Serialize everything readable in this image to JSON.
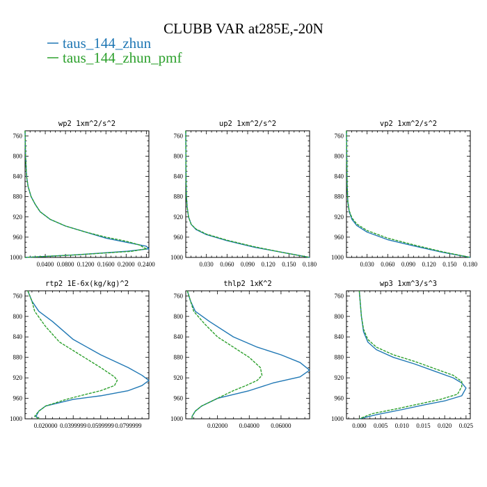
{
  "figure": {
    "title": "CLUBB VAR at285E,-20N",
    "legend": [
      {
        "label": "taus_144_zhun",
        "color": "#1f77b4"
      },
      {
        "label": "taus_144_zhun_pmf",
        "color": "#2ca02c"
      }
    ]
  },
  "chart_data": [
    {
      "type": "line",
      "title": "wp2 1xm^2/s^2",
      "xlim": [
        0.0,
        0.245
      ],
      "ylim": [
        1000,
        750
      ],
      "xticks": [
        0.04,
        0.08,
        0.12,
        0.16,
        0.2,
        0.24
      ],
      "xtick_labels": [
        "0.0400",
        "0.0800",
        "0.1200",
        "0.1600",
        "0.2000",
        "0.2400"
      ],
      "yticks": [
        760,
        800,
        840,
        880,
        920,
        960,
        1000
      ],
      "series": [
        {
          "color": "#1f77b4",
          "dashed": false,
          "x": [
            0.0,
            0.001,
            0.003,
            0.006,
            0.012,
            0.02,
            0.03,
            0.05,
            0.08,
            0.12,
            0.16,
            0.2,
            0.24,
            0.245,
            0.2,
            0.1,
            0.0
          ],
          "y": [
            750,
            800,
            840,
            860,
            880,
            895,
            910,
            925,
            938,
            950,
            962,
            970,
            978,
            983,
            988,
            995,
            1000
          ]
        },
        {
          "color": "#2ca02c",
          "dashed": true,
          "x": [
            0.0,
            0.001,
            0.003,
            0.006,
            0.012,
            0.02,
            0.03,
            0.05,
            0.08,
            0.12,
            0.16,
            0.2,
            0.225,
            0.24,
            0.21,
            0.1,
            0.0
          ],
          "y": [
            750,
            800,
            840,
            860,
            880,
            895,
            910,
            925,
            938,
            950,
            960,
            968,
            975,
            983,
            988,
            995,
            1000
          ]
        }
      ]
    },
    {
      "type": "line",
      "title": "up2 1xm^2/s^2",
      "xlim": [
        0.0,
        0.18
      ],
      "ylim": [
        1000,
        750
      ],
      "xticks": [
        0.03,
        0.06,
        0.09,
        0.12,
        0.15,
        0.18
      ],
      "xtick_labels": [
        "0.030",
        "0.060",
        "0.090",
        "0.120",
        "0.150",
        "0.180"
      ],
      "yticks": [
        760,
        800,
        840,
        880,
        920,
        960,
        1000
      ],
      "series": [
        {
          "color": "#1f77b4",
          "dashed": false,
          "x": [
            0.0,
            0.0005,
            0.001,
            0.002,
            0.004,
            0.008,
            0.015,
            0.03,
            0.06,
            0.1,
            0.14,
            0.18
          ],
          "y": [
            750,
            850,
            880,
            900,
            920,
            935,
            945,
            955,
            967,
            980,
            990,
            1000
          ]
        },
        {
          "color": "#2ca02c",
          "dashed": true,
          "x": [
            0.0,
            0.0005,
            0.001,
            0.002,
            0.004,
            0.008,
            0.015,
            0.03,
            0.06,
            0.1,
            0.14,
            0.18
          ],
          "y": [
            750,
            850,
            880,
            900,
            920,
            935,
            944,
            954,
            966,
            979,
            990,
            1000
          ]
        }
      ]
    },
    {
      "type": "line",
      "title": "vp2 1xm^2/s^2",
      "xlim": [
        0.0,
        0.18
      ],
      "ylim": [
        1000,
        750
      ],
      "xticks": [
        0.03,
        0.06,
        0.09,
        0.12,
        0.15,
        0.18
      ],
      "xtick_labels": [
        "0.030",
        "0.060",
        "0.090",
        "0.120",
        "0.150",
        "0.180"
      ],
      "yticks": [
        760,
        800,
        840,
        880,
        920,
        960,
        1000
      ],
      "series": [
        {
          "color": "#1f77b4",
          "dashed": false,
          "x": [
            0.0,
            0.001,
            0.002,
            0.004,
            0.008,
            0.015,
            0.03,
            0.06,
            0.1,
            0.14,
            0.18
          ],
          "y": [
            750,
            860,
            890,
            910,
            925,
            937,
            950,
            965,
            978,
            990,
            1000
          ]
        },
        {
          "color": "#2ca02c",
          "dashed": true,
          "x": [
            0.0,
            0.001,
            0.002,
            0.004,
            0.008,
            0.015,
            0.03,
            0.06,
            0.1,
            0.14,
            0.18
          ],
          "y": [
            750,
            860,
            890,
            908,
            922,
            934,
            947,
            962,
            976,
            989,
            1000
          ]
        }
      ]
    },
    {
      "type": "line",
      "title": "rtp2 1E-6x(kg/kg)^2",
      "xlim": [
        0.005,
        0.095
      ],
      "ylim": [
        1000,
        750
      ],
      "xticks": [
        0.02,
        0.04,
        0.06,
        0.08
      ],
      "xtick_labels": [
        "0.020000",
        "0.0399999",
        "0.0599999",
        "0.0799999"
      ],
      "yticks": [
        760,
        800,
        840,
        880,
        920,
        960,
        1000
      ],
      "series": [
        {
          "color": "#1f77b4",
          "dashed": false,
          "x": [
            0.007,
            0.01,
            0.015,
            0.025,
            0.04,
            0.06,
            0.08,
            0.09,
            0.095,
            0.09,
            0.08,
            0.06,
            0.04,
            0.02,
            0.015,
            0.013,
            0.015
          ],
          "y": [
            750,
            770,
            790,
            810,
            845,
            875,
            900,
            915,
            925,
            935,
            945,
            955,
            962,
            975,
            985,
            995,
            1000
          ]
        },
        {
          "color": "#2ca02c",
          "dashed": true,
          "x": [
            0.007,
            0.01,
            0.012,
            0.02,
            0.03,
            0.045,
            0.06,
            0.07,
            0.072,
            0.07,
            0.06,
            0.045,
            0.035,
            0.02,
            0.015,
            0.012,
            0.015
          ],
          "y": [
            750,
            770,
            790,
            820,
            850,
            875,
            900,
            918,
            925,
            935,
            945,
            955,
            962,
            975,
            985,
            995,
            1000
          ]
        }
      ]
    },
    {
      "type": "line",
      "title": "thlp2 1xK^2",
      "xlim": [
        0.0,
        0.078
      ],
      "ylim": [
        1000,
        750
      ],
      "xticks": [
        0.02,
        0.04,
        0.06
      ],
      "xtick_labels": [
        "0.02000",
        "0.04000",
        "0.06000"
      ],
      "yticks": [
        760,
        800,
        840,
        880,
        920,
        960,
        1000
      ],
      "series": [
        {
          "color": "#1f77b4",
          "dashed": false,
          "x": [
            0.001,
            0.003,
            0.006,
            0.015,
            0.03,
            0.045,
            0.06,
            0.072,
            0.078,
            0.072,
            0.055,
            0.04,
            0.02,
            0.01,
            0.006,
            0.004,
            0.004
          ],
          "y": [
            750,
            770,
            790,
            810,
            840,
            860,
            875,
            890,
            905,
            918,
            930,
            945,
            960,
            975,
            985,
            995,
            1000
          ]
        },
        {
          "color": "#2ca02c",
          "dashed": true,
          "x": [
            0.001,
            0.003,
            0.005,
            0.012,
            0.02,
            0.03,
            0.04,
            0.047,
            0.048,
            0.045,
            0.038,
            0.03,
            0.02,
            0.01,
            0.006,
            0.004,
            0.004
          ],
          "y": [
            750,
            770,
            790,
            815,
            840,
            860,
            880,
            900,
            915,
            925,
            935,
            945,
            960,
            975,
            985,
            995,
            1000
          ]
        }
      ]
    },
    {
      "type": "line",
      "title": "wp3 1xm^3/s^3",
      "xlim": [
        -0.003,
        0.026
      ],
      "ylim": [
        1000,
        750
      ],
      "xticks": [
        0.0,
        0.005,
        0.01,
        0.015,
        0.02,
        0.025
      ],
      "xtick_labels": [
        "0.000",
        "0.005",
        "0.010",
        "0.015",
        "0.020",
        "0.025"
      ],
      "yticks": [
        760,
        800,
        840,
        880,
        920,
        960,
        1000
      ],
      "series": [
        {
          "color": "#1f77b4",
          "dashed": false,
          "x": [
            0.0,
            0.0005,
            0.001,
            0.002,
            0.004,
            0.008,
            0.013,
            0.018,
            0.022,
            0.024,
            0.025,
            0.024,
            0.02,
            0.015,
            0.01,
            0.004,
            0.0
          ],
          "y": [
            750,
            800,
            830,
            850,
            865,
            880,
            893,
            908,
            920,
            930,
            940,
            955,
            965,
            973,
            982,
            992,
            1000
          ]
        },
        {
          "color": "#2ca02c",
          "dashed": true,
          "x": [
            0.0,
            0.0005,
            0.001,
            0.002,
            0.004,
            0.008,
            0.013,
            0.018,
            0.022,
            0.024,
            0.024,
            0.023,
            0.019,
            0.014,
            0.009,
            0.003,
            0.0
          ],
          "y": [
            750,
            800,
            825,
            845,
            860,
            875,
            888,
            903,
            915,
            927,
            937,
            952,
            962,
            971,
            980,
            990,
            1000
          ]
        }
      ]
    }
  ]
}
